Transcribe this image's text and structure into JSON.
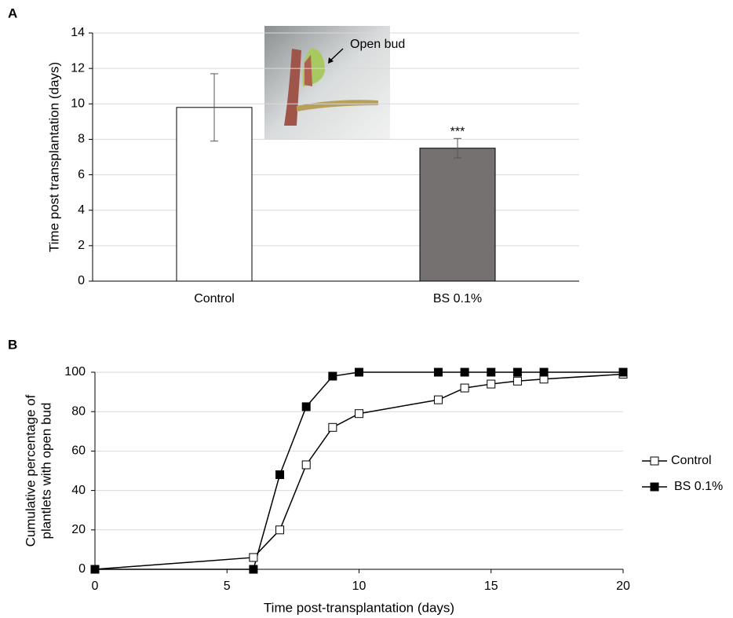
{
  "chart_data": [
    {
      "type": "bar",
      "panel": "A",
      "ylabel": "Time post transplantation (days)",
      "categories": [
        "Control",
        "BS 0.1%"
      ],
      "values": [
        9.8,
        7.5
      ],
      "errors": [
        1.9,
        0.55
      ],
      "colors": [
        "#ffffff",
        "#767171"
      ],
      "significance": [
        null,
        "***"
      ],
      "inset_label": "Open bud",
      "ylim": [
        0,
        14
      ],
      "yticks": [
        0,
        2,
        4,
        6,
        8,
        10,
        12,
        14
      ],
      "grid": true
    },
    {
      "type": "line",
      "panel": "B",
      "xlabel": "Time post-transplantation (days)",
      "ylabel": [
        "Cumulative percentage of",
        "plantlets with open bud"
      ],
      "x": [
        0,
        6,
        7,
        8,
        9,
        10,
        13,
        14,
        15,
        16,
        17,
        20
      ],
      "series": [
        {
          "name": "Control",
          "color": "#ffffff",
          "values": [
            0,
            6,
            20,
            53,
            72,
            79,
            86,
            92,
            94,
            95.5,
            96.5,
            99
          ]
        },
        {
          "name": "BS 0.1%",
          "color": "#000000",
          "values": [
            0,
            0,
            48,
            82.5,
            98,
            100,
            100,
            100,
            100,
            100,
            100,
            100
          ]
        }
      ],
      "xlim": [
        0,
        20
      ],
      "xticks": [
        0,
        5,
        10,
        15,
        20
      ],
      "ylim": [
        0,
        100
      ],
      "yticks": [
        0,
        20,
        40,
        60,
        80,
        100
      ],
      "grid": true,
      "legend": "right"
    }
  ]
}
